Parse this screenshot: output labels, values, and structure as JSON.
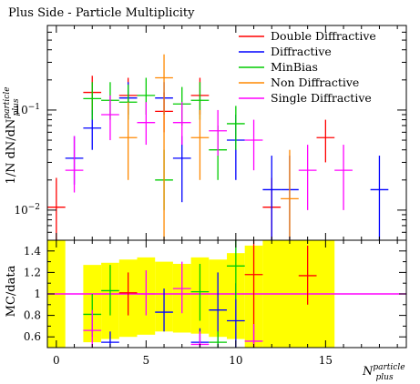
{
  "title": "Plus Side - Particle Multiplicity",
  "chart_data": [
    {
      "type": "scatter",
      "panel": "main",
      "title": "Plus Side - Particle Multiplicity",
      "ylabel": "1/N dN/dN_plus^particle",
      "yscale": "log",
      "ylim": [
        0.005,
        0.7
      ],
      "xlim": [
        -0.5,
        19.5
      ],
      "yticks": [
        {
          "value": 0.01,
          "base": "10",
          "exp": "−2"
        },
        {
          "value": 0.1,
          "base": "10",
          "exp": "−1"
        }
      ],
      "legend_position": "top-right",
      "series": [
        {
          "name": "Double Diffractive",
          "color": "#ff0000",
          "points": [
            {
              "x": 0,
              "y": 0.0107,
              "lo": 0.005,
              "hi": 0.021
            },
            {
              "x": 2,
              "y": 0.15,
              "lo": 0.09,
              "hi": 0.22
            },
            {
              "x": 4,
              "y": 0.14,
              "lo": 0.09,
              "hi": 0.21
            },
            {
              "x": 6,
              "y": 0.097,
              "lo": 0.06,
              "hi": 0.15
            },
            {
              "x": 8,
              "y": 0.14,
              "lo": 0.09,
              "hi": 0.21
            },
            {
              "x": 12,
              "y": 0.0107,
              "lo": 0.005,
              "hi": 0.021
            },
            {
              "x": 15,
              "y": 0.053,
              "lo": 0.03,
              "hi": 0.08
            }
          ]
        },
        {
          "name": "Diffractive",
          "color": "#0000ff",
          "points": [
            {
              "x": 1,
              "y": 0.033,
              "lo": 0.018,
              "hi": 0.055
            },
            {
              "x": 2,
              "y": 0.066,
              "lo": 0.04,
              "hi": 0.1
            },
            {
              "x": 4,
              "y": 0.132,
              "lo": 0.09,
              "hi": 0.19
            },
            {
              "x": 6,
              "y": 0.132,
              "lo": 0.09,
              "hi": 0.19
            },
            {
              "x": 7,
              "y": 0.033,
              "lo": 0.012,
              "hi": 0.055
            },
            {
              "x": 10,
              "y": 0.05,
              "lo": 0.02,
              "hi": 0.09
            },
            {
              "x": 12,
              "y": 0.016,
              "lo": 0.005,
              "hi": 0.035
            },
            {
              "x": 13,
              "y": 0.016,
              "lo": 0.005,
              "hi": 0.035
            },
            {
              "x": 18,
              "y": 0.016,
              "lo": 0.005,
              "hi": 0.035
            }
          ]
        },
        {
          "name": "MinBias",
          "color": "#00cc00",
          "points": [
            {
              "x": 2,
              "y": 0.13,
              "lo": 0.08,
              "hi": 0.19
            },
            {
              "x": 3,
              "y": 0.125,
              "lo": 0.08,
              "hi": 0.19
            },
            {
              "x": 4,
              "y": 0.12,
              "lo": 0.08,
              "hi": 0.18
            },
            {
              "x": 5,
              "y": 0.14,
              "lo": 0.09,
              "hi": 0.21
            },
            {
              "x": 6,
              "y": 0.02,
              "lo": 0.01,
              "hi": 0.04
            },
            {
              "x": 7,
              "y": 0.115,
              "lo": 0.07,
              "hi": 0.17
            },
            {
              "x": 8,
              "y": 0.125,
              "lo": 0.08,
              "hi": 0.19
            },
            {
              "x": 9,
              "y": 0.04,
              "lo": 0.02,
              "hi": 0.07
            },
            {
              "x": 10,
              "y": 0.073,
              "lo": 0.04,
              "hi": 0.11
            }
          ]
        },
        {
          "name": "Non Diffractive",
          "color": "#ff8800",
          "points": [
            {
              "x": 4,
              "y": 0.053,
              "lo": 0.02,
              "hi": 0.12
            },
            {
              "x": 6,
              "y": 0.21,
              "lo": 0.005,
              "hi": 0.36
            },
            {
              "x": 8,
              "y": 0.053,
              "lo": 0.02,
              "hi": 0.1
            },
            {
              "x": 13,
              "y": 0.013,
              "lo": 0.005,
              "hi": 0.04
            }
          ]
        },
        {
          "name": "Single Diffractive",
          "color": "#ff00ff",
          "points": [
            {
              "x": 1,
              "y": 0.025,
              "lo": 0.015,
              "hi": 0.055
            },
            {
              "x": 3,
              "y": 0.09,
              "lo": 0.05,
              "hi": 0.14
            },
            {
              "x": 5,
              "y": 0.075,
              "lo": 0.045,
              "hi": 0.12
            },
            {
              "x": 7,
              "y": 0.075,
              "lo": 0.045,
              "hi": 0.12
            },
            {
              "x": 9,
              "y": 0.062,
              "lo": 0.035,
              "hi": 0.1
            },
            {
              "x": 11,
              "y": 0.05,
              "lo": 0.025,
              "hi": 0.08
            },
            {
              "x": 14,
              "y": 0.025,
              "lo": 0.01,
              "hi": 0.045
            },
            {
              "x": 16,
              "y": 0.025,
              "lo": 0.01,
              "hi": 0.045
            }
          ]
        }
      ]
    },
    {
      "type": "scatter",
      "panel": "ratio",
      "ylabel": "MC/data",
      "xlabel": "N_plus^particle",
      "xlim": [
        -0.5,
        19.5
      ],
      "ylim": [
        0.5,
        1.5
      ],
      "yticks": [
        0.6,
        0.8,
        1,
        1.2,
        1.4
      ],
      "xticks": [
        0,
        5,
        10,
        15
      ],
      "reference_line": {
        "y": 1,
        "color": "#ff00ff"
      },
      "uncertainty_band": {
        "color": "#ffff00",
        "bins": [
          {
            "x0": -0.5,
            "x1": 0.5,
            "lo": 0.5,
            "hi": 1.5
          },
          {
            "x0": 1.5,
            "x1": 2.5,
            "lo": 0.55,
            "hi": 1.27
          },
          {
            "x0": 2.5,
            "x1": 3.5,
            "lo": 0.58,
            "hi": 1.29
          },
          {
            "x0": 3.5,
            "x1": 4.5,
            "lo": 0.6,
            "hi": 1.32
          },
          {
            "x0": 4.5,
            "x1": 5.5,
            "lo": 0.62,
            "hi": 1.34
          },
          {
            "x0": 5.5,
            "x1": 6.5,
            "lo": 0.65,
            "hi": 1.3
          },
          {
            "x0": 6.5,
            "x1": 7.5,
            "lo": 0.64,
            "hi": 1.28
          },
          {
            "x0": 7.5,
            "x1": 8.5,
            "lo": 0.63,
            "hi": 1.34
          },
          {
            "x0": 8.5,
            "x1": 9.5,
            "lo": 0.6,
            "hi": 1.32
          },
          {
            "x0": 9.5,
            "x1": 10.5,
            "lo": 0.58,
            "hi": 1.38
          },
          {
            "x0": 10.5,
            "x1": 11.5,
            "lo": 0.5,
            "hi": 1.45
          },
          {
            "x0": 11.5,
            "x1": 15.5,
            "lo": 0.5,
            "hi": 1.5
          }
        ]
      },
      "series": [
        {
          "name": "Double Diffractive",
          "color": "#ff0000",
          "points": [
            {
              "x": 4,
              "y": 1.01,
              "lo": 0.8,
              "hi": 1.2
            },
            {
              "x": 11,
              "y": 1.18,
              "lo": 0.5,
              "hi": 1.5
            },
            {
              "x": 14,
              "y": 1.17,
              "lo": 0.9,
              "hi": 1.45
            }
          ]
        },
        {
          "name": "Diffractive",
          "color": "#0000ff",
          "points": [
            {
              "x": 3,
              "y": 0.55,
              "lo": 0.5,
              "hi": 0.65
            },
            {
              "x": 6,
              "y": 0.83,
              "lo": 0.65,
              "hi": 1.05
            },
            {
              "x": 8,
              "y": 0.55,
              "lo": 0.5,
              "hi": 0.68
            },
            {
              "x": 9,
              "y": 0.85,
              "lo": 0.5,
              "hi": 1.2
            },
            {
              "x": 10,
              "y": 0.75,
              "lo": 0.5,
              "hi": 1.1
            }
          ]
        },
        {
          "name": "MinBias",
          "color": "#00cc00",
          "points": [
            {
              "x": 2,
              "y": 0.81,
              "lo": 0.6,
              "hi": 1.0
            },
            {
              "x": 3,
              "y": 1.03,
              "lo": 0.8,
              "hi": 1.27
            },
            {
              "x": 8,
              "y": 1.02,
              "lo": 0.75,
              "hi": 1.28
            },
            {
              "x": 9,
              "y": 0.55,
              "lo": 0.5,
              "hi": 0.65
            },
            {
              "x": 10,
              "y": 1.26,
              "lo": 0.95,
              "hi": 1.5
            }
          ]
        },
        {
          "name": "Non Diffractive",
          "color": "#ff8800",
          "points": []
        },
        {
          "name": "Single Diffractive",
          "color": "#ff00ff",
          "points": [
            {
              "x": 2,
              "y": 0.66,
              "lo": 0.5,
              "hi": 0.85
            },
            {
              "x": 5,
              "y": 1.0,
              "lo": 0.8,
              "hi": 1.22
            },
            {
              "x": 7,
              "y": 1.05,
              "lo": 0.82,
              "hi": 1.3
            },
            {
              "x": 8,
              "y": 0.53,
              "lo": 0.5,
              "hi": 0.65
            },
            {
              "x": 11,
              "y": 0.56,
              "lo": 0.5,
              "hi": 0.72
            }
          ]
        }
      ]
    }
  ]
}
